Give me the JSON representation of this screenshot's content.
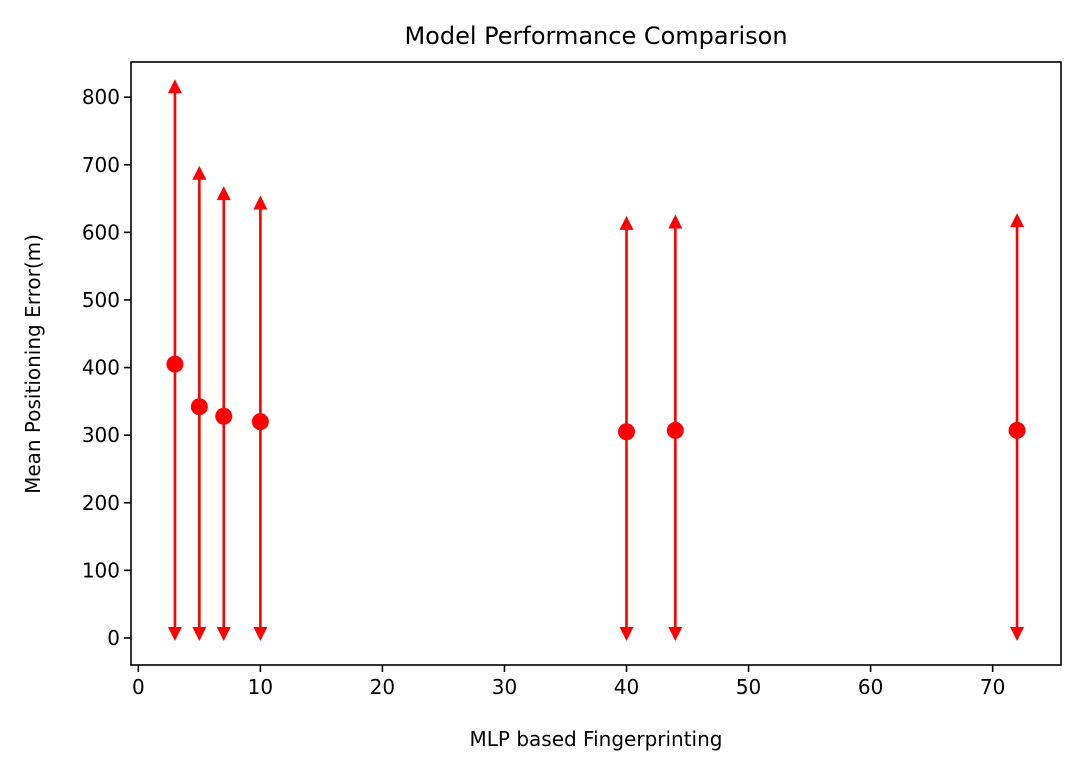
{
  "chart_data": {
    "type": "scatter",
    "title": "Model Performance Comparison",
    "xlabel": "MLP based Fingerprinting",
    "ylabel": "Mean Positioning Error(m)",
    "xlim": [
      -0.6,
      75.6
    ],
    "ylim": [
      -40,
      852
    ],
    "xticks": [
      0,
      10,
      20,
      30,
      40,
      50,
      60,
      70
    ],
    "yticks": [
      0,
      100,
      200,
      300,
      400,
      500,
      600,
      700,
      800
    ],
    "grid": false,
    "color": "#ff0000",
    "points": [
      {
        "x": 3,
        "y": 405,
        "err_low": 0,
        "err_high": 822
      },
      {
        "x": 5,
        "y": 342,
        "err_low": 0,
        "err_high": 694
      },
      {
        "x": 7,
        "y": 328,
        "err_low": 0,
        "err_high": 664
      },
      {
        "x": 10,
        "y": 320,
        "err_low": 0,
        "err_high": 650
      },
      {
        "x": 40,
        "y": 305,
        "err_low": 0,
        "err_high": 620
      },
      {
        "x": 44,
        "y": 307,
        "err_low": 0,
        "err_high": 622
      },
      {
        "x": 72,
        "y": 307,
        "err_low": 0,
        "err_high": 624
      }
    ]
  }
}
